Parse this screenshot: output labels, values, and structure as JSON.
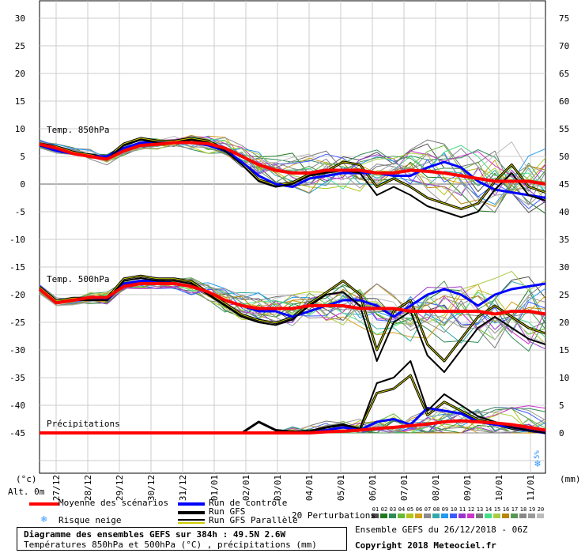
{
  "chart_data": {
    "type": "line",
    "left_axis_ticks": [
      "30",
      "25",
      "20",
      "15",
      "10",
      "5",
      "0",
      "-5",
      "-10",
      "-15",
      "-20",
      "-25",
      "-30",
      "-35",
      "-40",
      "-45"
    ],
    "right_axis_ticks": [
      "75",
      "70",
      "65",
      "60",
      "55",
      "50",
      "45",
      "40",
      "35",
      "30",
      "25",
      "20",
      "15",
      "10",
      "5",
      "0"
    ],
    "left_unit": "(°c)",
    "right_unit": "(mm)",
    "altitude_label": "Alt. 0m",
    "x_dates": [
      "27/12",
      "28/12",
      "29/12",
      "30/12",
      "31/12",
      "01/01",
      "02/01",
      "03/01",
      "04/01",
      "05/01",
      "06/01",
      "07/01",
      "08/01",
      "09/01",
      "10/01",
      "11/01"
    ],
    "panel_labels": {
      "t850": "Temp. 850hPa",
      "t500": "Temp. 500hPa",
      "precip": "Précipitations"
    },
    "snow_risk_text": "5%",
    "series": {
      "t850_mean": [
        7.2,
        6.5,
        5.5,
        5,
        4.5,
        6,
        7,
        7.2,
        7.5,
        7.5,
        7.3,
        6.5,
        5,
        3.5,
        2.5,
        2,
        2,
        2.5,
        2.5,
        2.5,
        2,
        2,
        2.5,
        2.3,
        2,
        1.5,
        1,
        0.5,
        0.5,
        0.5,
        0
      ],
      "t850_control": [
        7,
        6,
        5.5,
        5,
        5,
        6.5,
        7.5,
        7.5,
        7.5,
        7.5,
        7,
        6,
        4,
        1.5,
        0,
        -0.5,
        1,
        1.5,
        2,
        2,
        2,
        1.5,
        1.5,
        3,
        4,
        3,
        0.5,
        -1,
        -1.5,
        -2,
        -2.5
      ],
      "t850_gfs": [
        7,
        6.5,
        5.5,
        5,
        4.5,
        7,
        8,
        7.5,
        7.5,
        8,
        7.5,
        6,
        3.5,
        0.5,
        -0.5,
        0,
        1.5,
        2,
        2.5,
        2,
        -2,
        -0.5,
        -2,
        -4,
        -5,
        -6,
        -5,
        -1,
        2,
        -2,
        -3
      ],
      "t500_mean": [
        -19,
        -21.5,
        -21,
        -20.5,
        -20.5,
        -18.5,
        -18,
        -18,
        -18,
        -18.5,
        -19.5,
        -21,
        -22,
        -22.5,
        -22.5,
        -22.5,
        -22,
        -22,
        -22,
        -22.5,
        -22.5,
        -22.5,
        -23,
        -23,
        -23,
        -23,
        -23,
        -23.5,
        -23,
        -23,
        -23.5
      ],
      "t500_control": [
        -19,
        -21.5,
        -21,
        -20.5,
        -21,
        -18,
        -17.5,
        -17.5,
        -18,
        -18.5,
        -19.5,
        -21,
        -22,
        -23,
        -23,
        -24,
        -23,
        -22,
        -21,
        -21,
        -22,
        -24,
        -22,
        -20,
        -19,
        -20,
        -22,
        -20,
        -19,
        -18.5,
        -18
      ],
      "t500_gfs": [
        -19,
        -21.5,
        -21,
        -21,
        -21,
        -17.5,
        -17,
        -17.5,
        -17.5,
        -18,
        -20,
        -22,
        -24,
        -25,
        -25.5,
        -24.5,
        -22,
        -20,
        -19.5,
        -22,
        -32,
        -25,
        -23,
        -31,
        -34,
        -30,
        -26,
        -24,
        -26,
        -28,
        -29
      ],
      "precip_mean": [
        0,
        0,
        0,
        0,
        0,
        0,
        0,
        0,
        0,
        0,
        0,
        0,
        0,
        0,
        0,
        0,
        0,
        0.2,
        0.3,
        0.5,
        0.8,
        1,
        1.3,
        1.6,
        2,
        2.2,
        2,
        1.8,
        1.5,
        1,
        0.5
      ],
      "precip_control": [
        0,
        0,
        0,
        0,
        0,
        0,
        0,
        0,
        0,
        0,
        0,
        0,
        0,
        0,
        0,
        0,
        0,
        0.5,
        1,
        0.5,
        2,
        2.5,
        1.5,
        4.5,
        4,
        3.5,
        2,
        1.5,
        1,
        0.5,
        0
      ],
      "precip_gfs": [
        0,
        0,
        0,
        0,
        0,
        0,
        0,
        0,
        0,
        0,
        0,
        0,
        0,
        2,
        0.5,
        0.2,
        0.3,
        1,
        1.5,
        0.8,
        9,
        10,
        13,
        4,
        7,
        5,
        3,
        2,
        1,
        0.5,
        0
      ]
    }
  },
  "legend": {
    "mean": "Moyenne des scénarios",
    "control": "Run de contrôle",
    "gfs": "Run GFS",
    "gfs_parallel": "Run GFS Parallèle",
    "snow": "Risque neige",
    "perturbations": "20 Perturbations",
    "pert_numbers": [
      "01",
      "02",
      "03",
      "04",
      "05",
      "06",
      "07",
      "08",
      "09",
      "10",
      "11",
      "12",
      "13",
      "14",
      "15",
      "16",
      "17",
      "18",
      "19",
      "20"
    ],
    "pert_colors": [
      "#4d4d4d",
      "#1f7a1f",
      "#2e8b57",
      "#66bb33",
      "#b3c61c",
      "#d4a017",
      "#8a8a8a",
      "#33aaaa",
      "#2299ee",
      "#3c5aff",
      "#9933cc",
      "#cc33cc",
      "#777777",
      "#44dd88",
      "#aacc44",
      "#b8860b",
      "#559955",
      "#888888",
      "#999999",
      "#bbbbbb"
    ]
  },
  "footer": {
    "title": "Diagramme des ensembles GEFS sur 384h : 49.5N 2.6W",
    "subtitle": "Températures 850hPa et 500hPa (°C) , précipitations (mm)",
    "ensemble": "Ensemble GEFS du 26/12/2018 - 06Z",
    "copyright": "Copyright 2018 Meteociel.fr"
  },
  "colors": {
    "mean": "#ff0000",
    "control": "#0000ff",
    "gfs": "#000000",
    "gfs_parallel": "#999900"
  }
}
